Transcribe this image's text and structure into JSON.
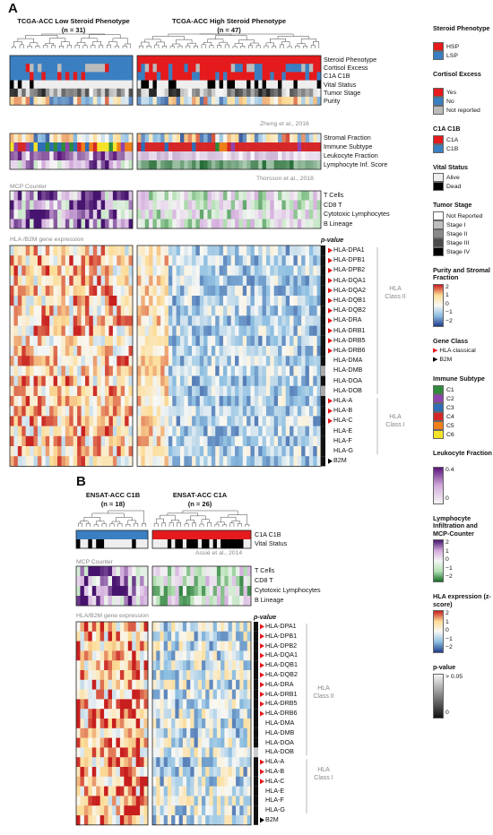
{
  "panel_a": {
    "label": "A",
    "group_low": {
      "title": "TCGA-ACC Low Steroid Phenotype",
      "n": "(n = 31)"
    },
    "group_high": {
      "title": "TCGA-ACC High Steroid Phenotype",
      "n": "(n = 47)"
    },
    "block1_labels": [
      "Steroid Phenotype",
      "Cortisol Excess",
      "C1A C1B",
      "Vital Status",
      "Tumor Stage",
      "Purity"
    ],
    "block1_cite": "Zheng et al., 2016",
    "block2_labels": [
      "Stromal Fraction",
      "Immune Subtype",
      "Leukocyte Fraction",
      "Lymphocyte Inf. Score"
    ],
    "block2_cite": "Thorsson et al., 2018",
    "mcp_title": "MCP Counter",
    "mcp_labels": [
      "T Cells",
      "CD8 T",
      "Cytotoxic Lymphocytes",
      "B Lineage"
    ],
    "hla_title": "HLA /B2M gene expression",
    "pvalue_label": "p-value",
    "genes": [
      "HLA-DPA1",
      "HLA-DPB1",
      "HLA-DPB2",
      "HLA-DQA1",
      "HLA-DQA2",
      "HLA-DQB1",
      "HLA-DQB2",
      "HLA-DRA",
      "HLA-DRB1",
      "HLA-DRB5",
      "HLA-DRB6",
      "HLA-DMA",
      "HLA-DMB",
      "HLA-DOA",
      "HLA-DOB",
      "HLA-A",
      "HLA-B",
      "HLA-C",
      "HLA-E",
      "HLA-F",
      "HLA-G",
      "B2M"
    ],
    "classical": [
      true,
      true,
      true,
      true,
      true,
      true,
      true,
      true,
      true,
      true,
      true,
      false,
      false,
      false,
      false,
      true,
      true,
      true,
      false,
      false,
      false,
      false
    ],
    "class2_label": "HLA Class II",
    "class1_label": "HLA Class I"
  },
  "panel_b": {
    "label": "B",
    "group_c1b": {
      "title": "ENSAT-ACC C1B",
      "n": "(n = 18)"
    },
    "group_c1a": {
      "title": "ENSAT-ACC C1A",
      "n": "(n = 26)"
    },
    "block1_labels": [
      "C1A C1B",
      "Vital Status"
    ],
    "block1_cite": "Assié et al., 2014",
    "mcp_title": "MCP Counter",
    "mcp_labels": [
      "T Cells",
      "CD8 T",
      "Cytotoxic Lymphocytes",
      "B Lineage"
    ],
    "hla_title": "HLA/B2M gene expression",
    "pvalue_label": "p-value",
    "genes": [
      "HLA-DPA1",
      "HLA-DPB1",
      "HLA-DPB2",
      "HLA-DQA1",
      "HLA-DQB1",
      "HLA-DQB2",
      "HLA-DRA",
      "HLA-DRB1",
      "HLA-DRB5",
      "HLA-DRB6",
      "HLA-DMA",
      "HLA-DMB",
      "HLA-DOA",
      "HLA-DOB",
      "HLA-A",
      "HLA-B",
      "HLA-C",
      "HLA-E",
      "HLA-F",
      "HLA-G",
      "B2M"
    ],
    "classical": [
      true,
      true,
      true,
      true,
      true,
      true,
      true,
      true,
      true,
      true,
      false,
      false,
      false,
      false,
      true,
      true,
      true,
      false,
      false,
      false,
      false
    ],
    "class2_label": "HLA Class II",
    "class1_label": "HLA Class I"
  },
  "legend": {
    "steroid": {
      "title": "Steroid Phenotype",
      "items": [
        {
          "label": "HSP",
          "color": "#e41a1c"
        },
        {
          "label": "LSP",
          "color": "#3a7fc1"
        }
      ]
    },
    "cortisol": {
      "title": "Cortisol Excess",
      "items": [
        {
          "label": "Yes",
          "color": "#e41a1c"
        },
        {
          "label": "No",
          "color": "#3a7fc1"
        },
        {
          "label": "Not reported",
          "color": "#bbbbbb"
        }
      ]
    },
    "c1ac1b": {
      "title": "C1A C1B",
      "items": [
        {
          "label": "C1A",
          "color": "#e41a1c"
        },
        {
          "label": "C1B",
          "color": "#3a7fc1"
        }
      ]
    },
    "vital": {
      "title": "Vital Status",
      "items": [
        {
          "label": "Alive",
          "color": "#eeeeee"
        },
        {
          "label": "Dead",
          "color": "#000000"
        }
      ]
    },
    "stage": {
      "title": "Tumor Stage",
      "items": [
        {
          "label": "Not Reported",
          "color": "#ffffff"
        },
        {
          "label": "Stage I",
          "color": "#bdbdbd"
        },
        {
          "label": "Stage II",
          "color": "#8a8a8a"
        },
        {
          "label": "Stage III",
          "color": "#4a4a4a"
        },
        {
          "label": "Stage IV",
          "color": "#000000"
        }
      ]
    },
    "purity": {
      "title": "Purity and Stromal Fraction",
      "ticks": [
        "2",
        "1",
        "0",
        "−1",
        "−2"
      ]
    },
    "geneclass": {
      "title": "Gene Class",
      "items": [
        {
          "label": "HLA classical",
          "color": "#e41a1c"
        },
        {
          "label": "B2M",
          "color": "#000000"
        }
      ]
    },
    "immune": {
      "title": "Immune Subtype",
      "items": [
        {
          "label": "C1",
          "color": "#2e8b3a"
        },
        {
          "label": "C2",
          "color": "#8e44ad"
        },
        {
          "label": "C3",
          "color": "#2f6db5"
        },
        {
          "label": "C4",
          "color": "#d62728"
        },
        {
          "label": "C5",
          "color": "#f07f1a"
        },
        {
          "label": "C6",
          "color": "#f5e32a"
        }
      ]
    },
    "leuk": {
      "title": "Leukocyte Fraction",
      "ticks": [
        "0.4",
        "0"
      ]
    },
    "lymph": {
      "title": "Lymphocyte Infiltration and MCP-Counter",
      "ticks": [
        "2",
        "1",
        "0",
        "−1",
        "−2"
      ]
    },
    "hlaexp": {
      "title": "HLA expression (z-score)",
      "ticks": [
        "2",
        "1",
        "0",
        "−1",
        "−2"
      ]
    },
    "pval": {
      "title": "p-value",
      "ticks": [
        "> 0.05",
        "0"
      ]
    }
  }
}
